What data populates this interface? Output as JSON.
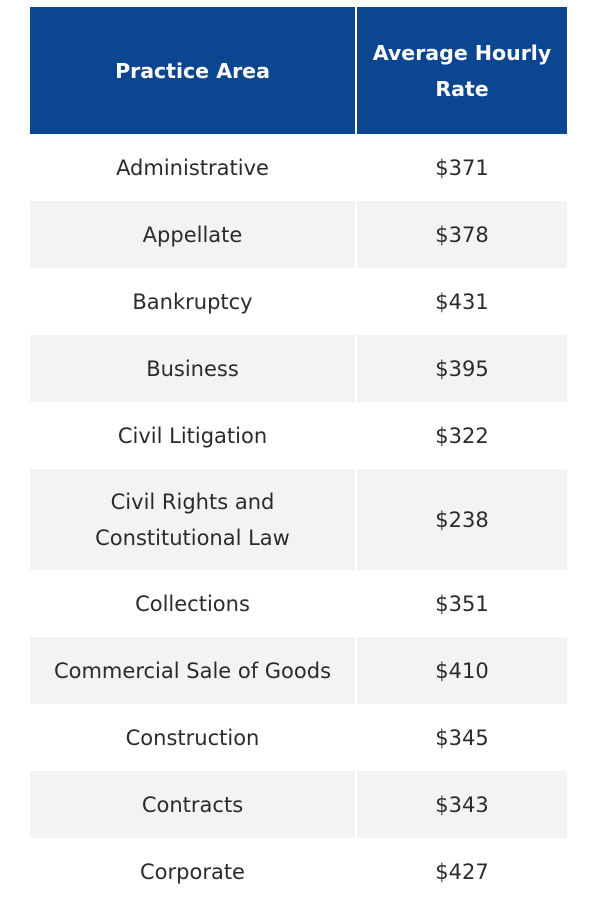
{
  "table": {
    "headers": {
      "practice_area": "Practice Area",
      "average_hourly_rate": "Average Hourly Rate"
    },
    "rows": [
      {
        "area": "Administrative",
        "rate": "$371"
      },
      {
        "area": "Appellate",
        "rate": "$378"
      },
      {
        "area": "Bankruptcy",
        "rate": "$431"
      },
      {
        "area": "Business",
        "rate": "$395"
      },
      {
        "area": "Civil Litigation",
        "rate": "$322"
      },
      {
        "area": "Civil Rights and Constitutional Law",
        "rate": "$238"
      },
      {
        "area": "Collections",
        "rate": "$351"
      },
      {
        "area": "Commercial Sale of Goods",
        "rate": "$410"
      },
      {
        "area": "Construction",
        "rate": "$345"
      },
      {
        "area": "Contracts",
        "rate": "$343"
      },
      {
        "area": "Corporate",
        "rate": "$427"
      }
    ]
  },
  "colors": {
    "header_bg": "#0d4690",
    "header_text": "#ffffff",
    "row_shade": "#f4f3f1",
    "text": "#2b2b2b"
  }
}
